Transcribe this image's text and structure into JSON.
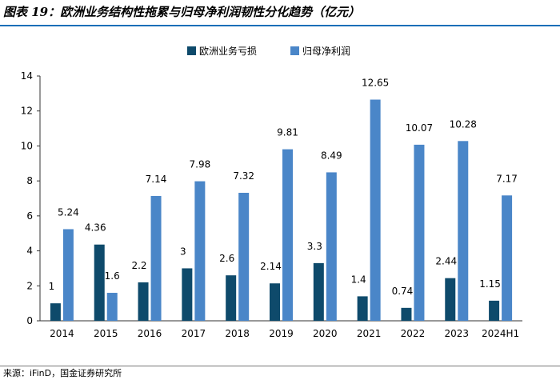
{
  "title": "图表 19：欧洲业务结构性拖累与归母净利润韧性分化趋势（亿元）",
  "source": "来源：iFinD，国金证券研究所",
  "colors": {
    "series1": "#0e4a6b",
    "series2": "#4a86c8",
    "title_rule": "#1a6fb8"
  },
  "chart_data": {
    "type": "bar",
    "title": "图表 19：欧洲业务结构性拖累与归母净利润韧性分化趋势（亿元）",
    "categories": [
      "2014",
      "2015",
      "2016",
      "2017",
      "2018",
      "2019",
      "2020",
      "2021",
      "2022",
      "2023",
      "2024H1"
    ],
    "series": [
      {
        "name": "欧洲业务亏损",
        "values": [
          1,
          4.36,
          2.2,
          3,
          2.6,
          2.14,
          3.3,
          1.4,
          0.74,
          2.44,
          1.15
        ]
      },
      {
        "name": "归母净利润",
        "values": [
          5.24,
          1.6,
          7.14,
          7.98,
          7.32,
          9.81,
          8.49,
          12.65,
          10.07,
          10.28,
          7.17
        ]
      }
    ],
    "ylim": [
      0,
      14
    ],
    "yticks": [
      0,
      2,
      4,
      6,
      8,
      10,
      12,
      14
    ],
    "xlabel": "",
    "ylabel": "",
    "legend": "top-center",
    "grid": false
  }
}
